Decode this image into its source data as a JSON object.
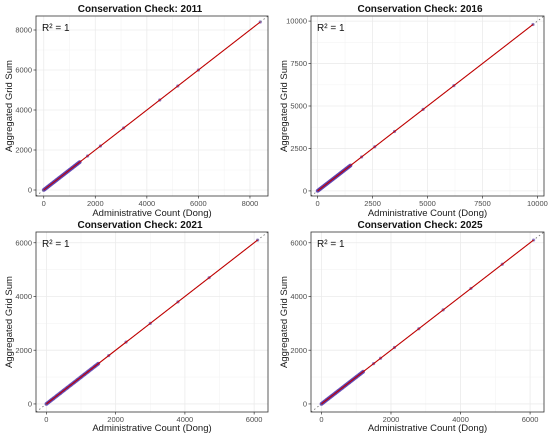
{
  "chart_data": [
    {
      "type": "scatter",
      "title": "Conservation Check: 2011",
      "xlabel": "Administrative Count (Dong)",
      "ylabel": "Aggregated Grid Sum",
      "annotation": "R² = 1",
      "xlim": [
        -300,
        8700
      ],
      "ylim": [
        -300,
        8700
      ],
      "xticks": [
        0,
        2000,
        4000,
        6000,
        8000
      ],
      "yticks": [
        0,
        2000,
        4000,
        6000,
        8000
      ],
      "grid": true,
      "reference_line": "y = x (dotted)",
      "fit_line": "linear fit (red)",
      "point_density_max": 1400,
      "x": [
        0,
        50,
        100,
        150,
        200,
        300,
        400,
        500,
        600,
        700,
        800,
        900,
        1000,
        1100,
        1200,
        1300,
        1400,
        1700,
        2200,
        3100,
        4500,
        5200,
        6000,
        8400
      ],
      "y": [
        0,
        50,
        100,
        150,
        200,
        300,
        400,
        500,
        600,
        700,
        800,
        900,
        1000,
        1100,
        1200,
        1300,
        1400,
        1700,
        2200,
        3100,
        4500,
        5200,
        6000,
        8400
      ]
    },
    {
      "type": "scatter",
      "title": "Conservation Check: 2016",
      "xlabel": "Administrative Count (Dong)",
      "ylabel": "Aggregated Grid Sum",
      "annotation": "R² = 1",
      "xlim": [
        -300,
        10300
      ],
      "ylim": [
        -300,
        10300
      ],
      "xticks": [
        0,
        2500,
        5000,
        7500,
        10000
      ],
      "yticks": [
        0,
        2500,
        5000,
        7500,
        10000
      ],
      "grid": true,
      "reference_line": "y = x (dotted)",
      "fit_line": "linear fit (red)",
      "point_density_max": 1500,
      "x": [
        0,
        50,
        100,
        150,
        200,
        300,
        400,
        500,
        600,
        700,
        800,
        900,
        1000,
        1100,
        1200,
        1300,
        1400,
        1500,
        2000,
        2600,
        3500,
        4800,
        6200,
        9800
      ],
      "y": [
        0,
        50,
        100,
        150,
        200,
        300,
        400,
        500,
        600,
        700,
        800,
        900,
        1000,
        1100,
        1200,
        1300,
        1400,
        1500,
        2000,
        2600,
        3500,
        4800,
        6200,
        9800
      ]
    },
    {
      "type": "scatter",
      "title": "Conservation Check: 2021",
      "xlabel": "Administrative Count (Dong)",
      "ylabel": "Aggregated Grid Sum",
      "annotation": "R² = 1",
      "xlim": [
        -300,
        6400
      ],
      "ylim": [
        -300,
        6400
      ],
      "xticks": [
        0,
        2000,
        4000,
        6000
      ],
      "yticks": [
        0,
        2000,
        4000,
        6000
      ],
      "grid": true,
      "reference_line": "y = x (dotted)",
      "fit_line": "linear fit (red)",
      "point_density_max": 1500,
      "x": [
        0,
        50,
        100,
        150,
        200,
        300,
        400,
        500,
        600,
        700,
        800,
        900,
        1000,
        1100,
        1200,
        1300,
        1400,
        1500,
        1800,
        2300,
        3000,
        3800,
        4700,
        6100
      ],
      "y": [
        0,
        50,
        100,
        150,
        200,
        300,
        400,
        500,
        600,
        700,
        800,
        900,
        1000,
        1100,
        1200,
        1300,
        1400,
        1500,
        1800,
        2300,
        3000,
        3800,
        4700,
        6100
      ]
    },
    {
      "type": "scatter",
      "title": "Conservation Check: 2025",
      "xlabel": "Administrative Count (Dong)",
      "ylabel": "Aggregated Grid Sum",
      "annotation": "R² = 1",
      "xlim": [
        -300,
        6400
      ],
      "ylim": [
        -300,
        6400
      ],
      "xticks": [
        0,
        2000,
        4000,
        6000
      ],
      "yticks": [
        0,
        2000,
        4000,
        6000
      ],
      "grid": true,
      "reference_line": "y = x (dotted)",
      "fit_line": "linear fit (red)",
      "point_density_max": 1200,
      "x": [
        0,
        50,
        100,
        150,
        200,
        300,
        400,
        500,
        600,
        700,
        800,
        900,
        1000,
        1100,
        1200,
        1500,
        1700,
        2100,
        2800,
        3500,
        4300,
        5200,
        6100
      ],
      "y": [
        0,
        50,
        100,
        150,
        200,
        300,
        400,
        500,
        600,
        700,
        800,
        900,
        1000,
        1100,
        1200,
        1500,
        1700,
        2100,
        2800,
        3500,
        4300,
        5200,
        6100
      ]
    }
  ],
  "colors": {
    "points": "#5b3fb0",
    "fit_line": "#c00000",
    "reference_line": "#6a6a6a",
    "grid": "#ebebeb",
    "panel_border": "#333333"
  }
}
